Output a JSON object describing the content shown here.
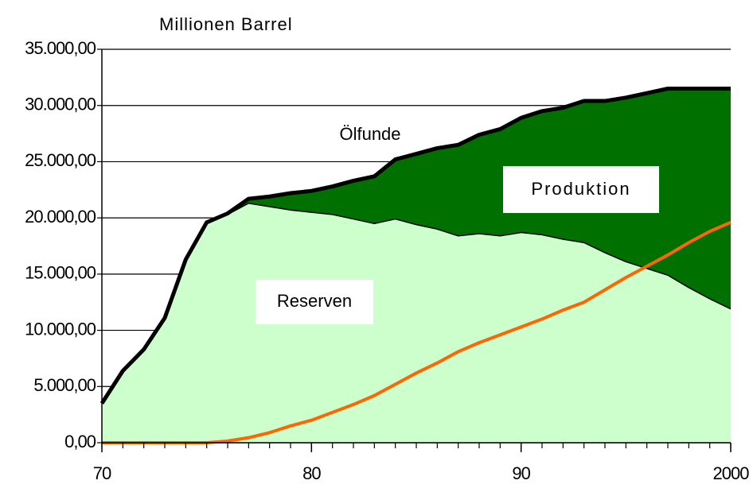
{
  "chart_data": {
    "type": "area",
    "y_label": "Millionen Barrel",
    "x": [
      1970,
      1971,
      1972,
      1973,
      1974,
      1975,
      1976,
      1977,
      1978,
      1979,
      1980,
      1981,
      1982,
      1983,
      1984,
      1985,
      1986,
      1987,
      1988,
      1989,
      1990,
      1991,
      1992,
      1993,
      1994,
      1995,
      1996,
      1997,
      1998,
      1999,
      2000
    ],
    "series": [
      {
        "name": "Ölfunde",
        "kind": "area",
        "color": "#007000",
        "line_color": "#000000",
        "values": [
          3500,
          6400,
          8300,
          11100,
          16300,
          19600,
          20400,
          21700,
          21900,
          22200,
          22400,
          22800,
          23300,
          23700,
          25200,
          25700,
          26200,
          26500,
          27400,
          27900,
          28900,
          29500,
          29800,
          30400,
          30400,
          30700,
          31100,
          31500,
          31500,
          31500,
          31500
        ]
      },
      {
        "name": "Reserven",
        "kind": "area",
        "color": "#ccffcc",
        "line_color": "#000000",
        "values": [
          3500,
          6400,
          8300,
          11100,
          16300,
          19600,
          20300,
          21300,
          21000,
          20700,
          20500,
          20300,
          19900,
          19500,
          19900,
          19400,
          19000,
          18400,
          18600,
          18400,
          18700,
          18500,
          18100,
          17800,
          16900,
          16100,
          15500,
          14900,
          13800,
          12800,
          11900
        ]
      },
      {
        "name": "Produktion",
        "kind": "line",
        "color": "#ff6600",
        "values": [
          0,
          0,
          0,
          0,
          0,
          0,
          150,
          450,
          900,
          1500,
          2000,
          2700,
          3400,
          4200,
          5200,
          6200,
          7100,
          8100,
          8900,
          9600,
          10300,
          11000,
          11800,
          12500,
          13600,
          14700,
          15700,
          16700,
          17800,
          18800,
          19600
        ]
      }
    ],
    "xlim": [
      1970,
      2000
    ],
    "xticks": [
      {
        "value": 1970,
        "label": "70"
      },
      {
        "value": 1980,
        "label": "80"
      },
      {
        "value": 1990,
        "label": "90"
      },
      2000
    ],
    "ylim": [
      0,
      35000
    ],
    "yticks": [
      {
        "value": 0,
        "label": "0,00"
      },
      {
        "value": 5000,
        "label": "5.000,00"
      },
      {
        "value": 10000,
        "label": "10.000,00"
      },
      {
        "value": 15000,
        "label": "15.000,00"
      },
      {
        "value": 20000,
        "label": "20.000,00"
      },
      {
        "value": 25000,
        "label": "25.000,00"
      },
      {
        "value": 30000,
        "label": "30.000,00"
      },
      {
        "value": 35000,
        "label": "35.000,00"
      }
    ],
    "grid": true
  }
}
